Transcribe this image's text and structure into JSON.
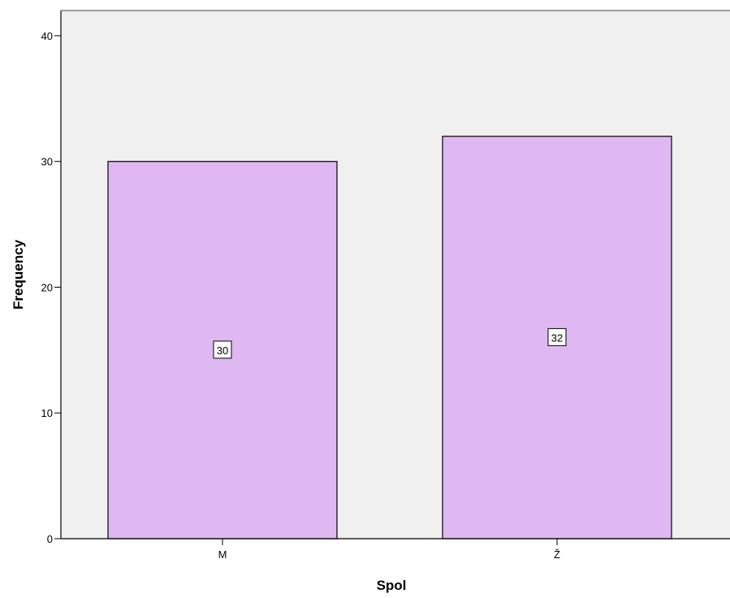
{
  "chart_data": {
    "type": "bar",
    "title": "",
    "xlabel": "Spol",
    "ylabel": "Frequency",
    "categories": [
      "M",
      "Ž"
    ],
    "values": [
      30,
      32
    ],
    "data_labels": [
      "30",
      "32"
    ],
    "ylim": [
      0,
      42
    ],
    "yticks": [
      0,
      10,
      20,
      30,
      40
    ],
    "ytick_labels": [
      "0",
      "10",
      "20",
      "30",
      "40"
    ],
    "grid": false,
    "legend": "none",
    "colors": {
      "bar_fill": "#dfb8f2",
      "bar_stroke": "#000000",
      "plot_background": "#f0f0f0",
      "page_background": "#ffffff",
      "axis": "#000000"
    }
  }
}
